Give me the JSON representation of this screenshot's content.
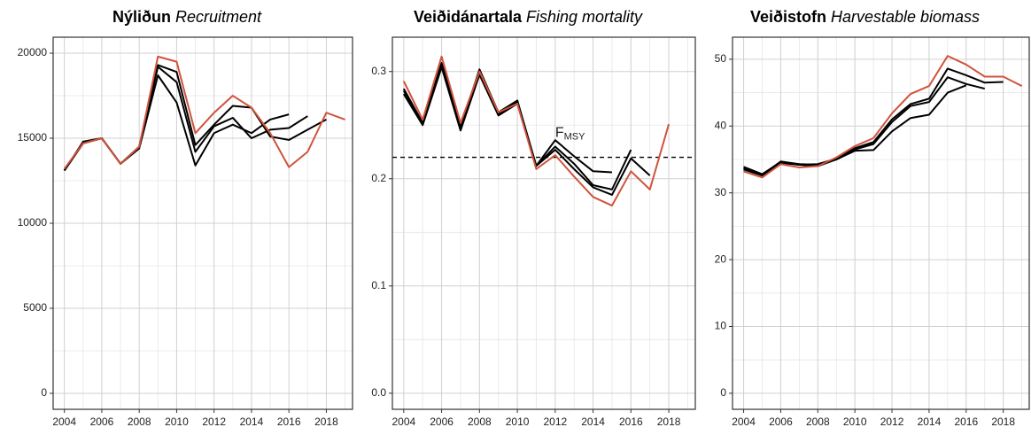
{
  "chart_data": [
    {
      "type": "line",
      "title": "Nýliðun",
      "title_en": "Recruitment",
      "x": [
        2004,
        2005,
        2006,
        2007,
        2008,
        2009,
        2010,
        2011,
        2012,
        2013,
        2014,
        2015,
        2016,
        2017,
        2018,
        2019
      ],
      "xlim": [
        2003.4,
        2019.4
      ],
      "xticks": [
        2004,
        2006,
        2008,
        2010,
        2012,
        2014,
        2016,
        2018
      ],
      "minor_xticks": [
        2005,
        2007,
        2009,
        2011,
        2013,
        2015,
        2017,
        2019
      ],
      "ylim": [
        -940,
        20940
      ],
      "yticks": [
        0,
        5000,
        10000,
        15000,
        20000
      ],
      "minor_yticks": [
        2500,
        7500,
        12500,
        17500
      ],
      "grid": true,
      "series": [
        {
          "color": "#000000",
          "values": [
            13100,
            14700,
            15000,
            13500,
            14400,
            18700,
            17100,
            13400,
            15300,
            15800,
            15300,
            16100,
            16400,
            null,
            null,
            null
          ]
        },
        {
          "color": "#000000",
          "values": [
            13100,
            14700,
            15000,
            13500,
            14500,
            19200,
            18300,
            14200,
            15700,
            16200,
            15000,
            15500,
            15600,
            16300,
            null,
            null
          ]
        },
        {
          "color": "#000000",
          "values": [
            13100,
            14800,
            15000,
            13500,
            14500,
            19300,
            18900,
            14600,
            15800,
            16900,
            16800,
            15100,
            14900,
            15500,
            16100,
            null
          ]
        },
        {
          "color": "#d0533d",
          "values": [
            13200,
            14700,
            15000,
            13500,
            14500,
            19800,
            19500,
            15300,
            16500,
            17500,
            16800,
            15300,
            13300,
            14200,
            16500,
            16100
          ]
        }
      ]
    },
    {
      "type": "line",
      "title": "Veiðidánartala",
      "title_en": "Fishing mortality",
      "x": [
        2004,
        2005,
        2006,
        2007,
        2008,
        2009,
        2010,
        2011,
        2012,
        2013,
        2014,
        2015,
        2016,
        2017,
        2018
      ],
      "xlim": [
        2003.4,
        2019.4
      ],
      "xticks": [
        2004,
        2006,
        2008,
        2010,
        2012,
        2014,
        2016,
        2018
      ],
      "minor_xticks": [
        2005,
        2007,
        2009,
        2011,
        2013,
        2015,
        2017,
        2019
      ],
      "ylim": [
        -0.015,
        0.332
      ],
      "yticks": [
        {
          "value": 0,
          "label": "0.0"
        },
        0.1,
        0.2,
        0.3
      ],
      "minor_yticks": [
        0.05,
        0.15,
        0.25
      ],
      "grid": true,
      "reference": {
        "value": 0.22,
        "label": "F",
        "label_sub": "MSY"
      },
      "series": [
        {
          "color": "#000000",
          "values": [
            0.284,
            0.252,
            0.308,
            0.248,
            0.302,
            0.262,
            0.273,
            0.212,
            0.236,
            0.221,
            0.207,
            0.206,
            null,
            null,
            null
          ]
        },
        {
          "color": "#000000",
          "values": [
            0.282,
            0.251,
            0.306,
            0.246,
            0.299,
            0.26,
            0.272,
            0.212,
            0.23,
            0.214,
            0.194,
            0.19,
            0.227,
            null,
            null
          ]
        },
        {
          "color": "#000000",
          "values": [
            0.279,
            0.25,
            0.304,
            0.245,
            0.297,
            0.259,
            0.27,
            0.212,
            0.227,
            0.209,
            0.192,
            0.185,
            0.219,
            0.203,
            null
          ]
        },
        {
          "color": "#d0533d",
          "values": [
            0.291,
            0.255,
            0.314,
            0.252,
            0.3,
            0.262,
            0.27,
            0.209,
            0.222,
            0.202,
            0.183,
            0.175,
            0.207,
            0.19,
            0.251
          ]
        }
      ]
    },
    {
      "type": "line",
      "title": "Veiðistofn",
      "title_en": "Harvestable biomass",
      "x": [
        2004,
        2005,
        2006,
        2007,
        2008,
        2009,
        2010,
        2011,
        2012,
        2013,
        2014,
        2015,
        2016,
        2017,
        2018,
        2019
      ],
      "xlim": [
        2003.4,
        2019.4
      ],
      "xticks": [
        2004,
        2006,
        2008,
        2010,
        2012,
        2014,
        2016,
        2018
      ],
      "minor_xticks": [
        2005,
        2007,
        2009,
        2011,
        2013,
        2015,
        2017,
        2019
      ],
      "ylim": [
        -2.4,
        53.3
      ],
      "yticks": [
        0,
        10,
        20,
        30,
        40,
        50
      ],
      "minor_yticks": [
        5,
        15,
        25,
        35,
        45
      ],
      "grid": true,
      "series": [
        {
          "color": "#000000",
          "values": [
            33.9,
            32.8,
            34.6,
            34.2,
            34.0,
            35.0,
            36.3,
            36.4,
            39.2,
            41.2,
            41.7,
            45.0,
            46.1,
            null,
            null,
            null
          ]
        },
        {
          "color": "#000000",
          "values": [
            33.7,
            32.7,
            34.7,
            34.3,
            34.2,
            35.0,
            36.5,
            37.3,
            40.6,
            43.0,
            43.6,
            47.3,
            46.3,
            45.6,
            null,
            null
          ]
        },
        {
          "color": "#000000",
          "values": [
            33.5,
            32.6,
            34.5,
            34.2,
            34.3,
            35.1,
            36.7,
            37.6,
            41.0,
            43.3,
            44.1,
            48.6,
            47.6,
            46.5,
            46.6,
            null
          ]
        },
        {
          "color": "#d0533d",
          "values": [
            33.2,
            32.3,
            34.3,
            33.8,
            34.0,
            35.3,
            37.0,
            38.2,
            41.9,
            44.8,
            46.0,
            50.5,
            49.2,
            47.4,
            47.4,
            46.0
          ]
        }
      ]
    }
  ]
}
